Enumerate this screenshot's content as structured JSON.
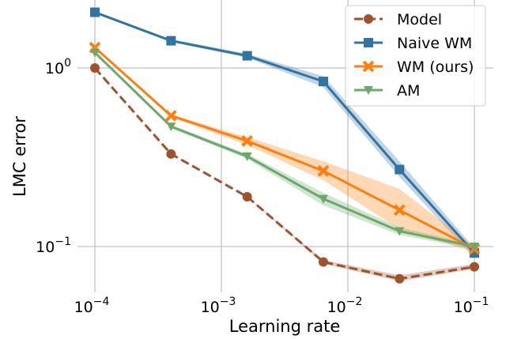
{
  "chart_data": {
    "type": "line",
    "title": "",
    "xlabel": "Learning rate",
    "ylabel": "LMC error",
    "x_scale": "log",
    "y_scale": "log",
    "xlim": [
      0.0001,
      0.1
    ],
    "ylim": [
      0.06,
      2.1
    ],
    "grid": true,
    "legend_position": "top-right",
    "x": [
      0.0001,
      0.0004,
      0.0016,
      0.0064,
      0.0256,
      0.1
    ],
    "x_ticks": [
      {
        "value": 0.0001,
        "base": "10",
        "exp": "−4"
      },
      {
        "value": 0.001,
        "base": "10",
        "exp": "−3"
      },
      {
        "value": 0.01,
        "base": "10",
        "exp": "−2"
      },
      {
        "value": 0.1,
        "base": "10",
        "exp": "−1"
      }
    ],
    "y_ticks": [
      {
        "value": 1,
        "base": "10",
        "exp": "0"
      },
      {
        "value": 0.1,
        "base": "10",
        "exp": "−1"
      }
    ],
    "series": [
      {
        "name": "Model",
        "color": "#a0522d",
        "marker": "circle",
        "dashed": true,
        "values": [
          1.0,
          0.33,
          0.19,
          0.082,
          0.066,
          0.077
        ],
        "lower": [
          1.0,
          0.33,
          0.19,
          0.08,
          0.064,
          0.075
        ],
        "upper": [
          1.0,
          0.33,
          0.19,
          0.084,
          0.069,
          0.08
        ]
      },
      {
        "name": "Naive WM",
        "color": "#3274a1",
        "marker": "square",
        "dashed": false,
        "values": [
          2.05,
          1.42,
          1.17,
          0.84,
          0.27,
          0.092
        ],
        "lower": [
          2.05,
          1.4,
          1.14,
          0.78,
          0.245,
          0.086
        ],
        "upper": [
          2.05,
          1.45,
          1.2,
          0.9,
          0.3,
          0.098
        ]
      },
      {
        "name": "WM (ours)",
        "color": "#ff7f0e",
        "marker": "x",
        "dashed": false,
        "values": [
          1.3,
          0.54,
          0.39,
          0.265,
          0.16,
          0.097
        ],
        "lower": [
          1.3,
          0.53,
          0.37,
          0.235,
          0.125,
          0.093
        ],
        "upper": [
          1.3,
          0.55,
          0.41,
          0.3,
          0.21,
          0.1
        ]
      },
      {
        "name": "AM",
        "color": "#6aa96a",
        "marker": "triangle-down",
        "dashed": false,
        "values": [
          1.22,
          0.47,
          0.32,
          0.185,
          0.122,
          0.1
        ],
        "lower": [
          1.22,
          0.46,
          0.31,
          0.17,
          0.116,
          0.097
        ],
        "upper": [
          1.22,
          0.48,
          0.33,
          0.2,
          0.128,
          0.103
        ]
      }
    ]
  }
}
